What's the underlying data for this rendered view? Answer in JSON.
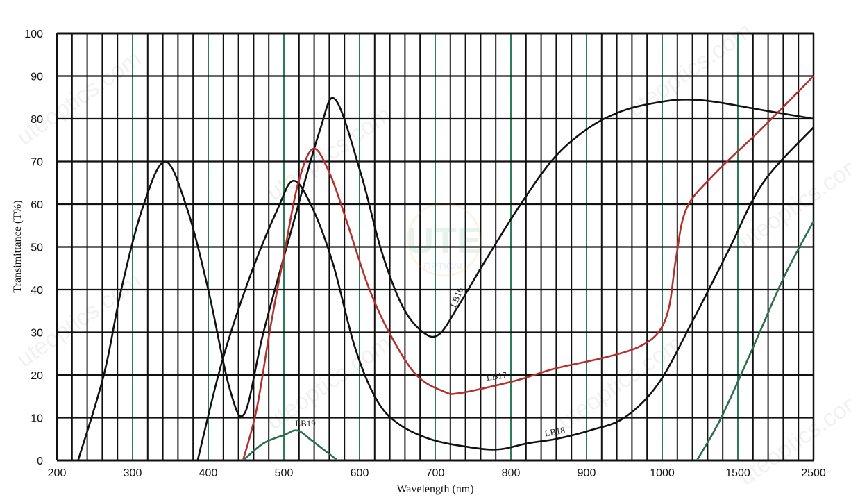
{
  "chart_data": {
    "type": "line",
    "title": "",
    "xlabel": "Wavelength (nm)",
    "ylabel": "Transimittance (T%)",
    "x_ticks": [
      200,
      300,
      400,
      500,
      600,
      700,
      800,
      900,
      1000,
      1500,
      2500
    ],
    "x_scale": "piecewise-linear (200-1000 at 100 nm per division, 1000-1500, 1500-2500 equally spaced)",
    "y_ticks": [
      0,
      10,
      20,
      30,
      40,
      50,
      60,
      70,
      80,
      90,
      100
    ],
    "xlim": [
      200,
      2500
    ],
    "ylim": [
      0,
      100
    ],
    "grid": true,
    "grid_color": "#111111",
    "major_grid_color": "#2e7d5a",
    "series": [
      {
        "name": "LB16",
        "color": "#111111",
        "x": [
          228,
          262,
          285,
          313,
          343,
          372,
          400,
          428,
          448,
          473,
          510,
          547,
          568,
          602,
          629,
          657,
          684,
          705,
          730,
          767,
          813,
          858,
          904,
          950,
          1000,
          1160,
          1344,
          1833,
          2500
        ],
        "y": [
          0,
          20,
          40,
          59,
          70,
          59,
          40,
          17,
          11,
          30,
          54,
          77,
          84.5,
          67,
          49,
          36,
          30,
          29.5,
          36,
          47,
          60,
          71,
          78,
          82,
          84,
          84.5,
          84,
          82,
          80
        ]
      },
      {
        "name": "LB18",
        "color": "#111111",
        "x": [
          386,
          418,
          455,
          492,
          513,
          538,
          565,
          593,
          620,
          648,
          693,
          749,
          785,
          822,
          859,
          904,
          950,
          995,
          1206,
          1436,
          1833,
          2500
        ],
        "y": [
          0,
          23,
          43,
          59,
          65.5,
          59,
          46,
          27,
          15,
          9,
          5,
          3,
          2.6,
          4,
          5,
          7,
          10,
          18,
          33,
          49,
          65,
          78
        ]
      },
      {
        "name": "LB17",
        "color": "#b3302c",
        "x": [
          446,
          464,
          482,
          501,
          519,
          539,
          561,
          583,
          611,
          639,
          675,
          713,
          730,
          767,
          813,
          858,
          922,
          968,
          995,
          1046,
          1092,
          1161,
          1344,
          1833,
          2500
        ],
        "y": [
          0,
          12,
          31,
          49,
          65,
          73,
          67,
          56,
          41,
          30,
          20,
          16,
          15.7,
          17,
          19,
          21.5,
          24,
          26.5,
          30,
          36,
          47.5,
          59,
          67,
          78,
          90
        ]
      },
      {
        "name": "LB19",
        "color": "#2a6e4c",
        "segments": [
          {
            "x": [
              446,
              473,
              501,
              518,
              538,
              571
            ],
            "y": [
              0,
              4,
              6,
              7,
              4.5,
              0
            ]
          },
          {
            "x": [
              1229,
              1390,
              1739,
              2111,
              2500
            ],
            "y": [
              0,
              10,
              28,
              43,
              56
            ]
          }
        ]
      }
    ]
  },
  "watermark": {
    "text": "uteoptics.com",
    "logo": "UTE",
    "logo_sub": "OPTICAL"
  }
}
